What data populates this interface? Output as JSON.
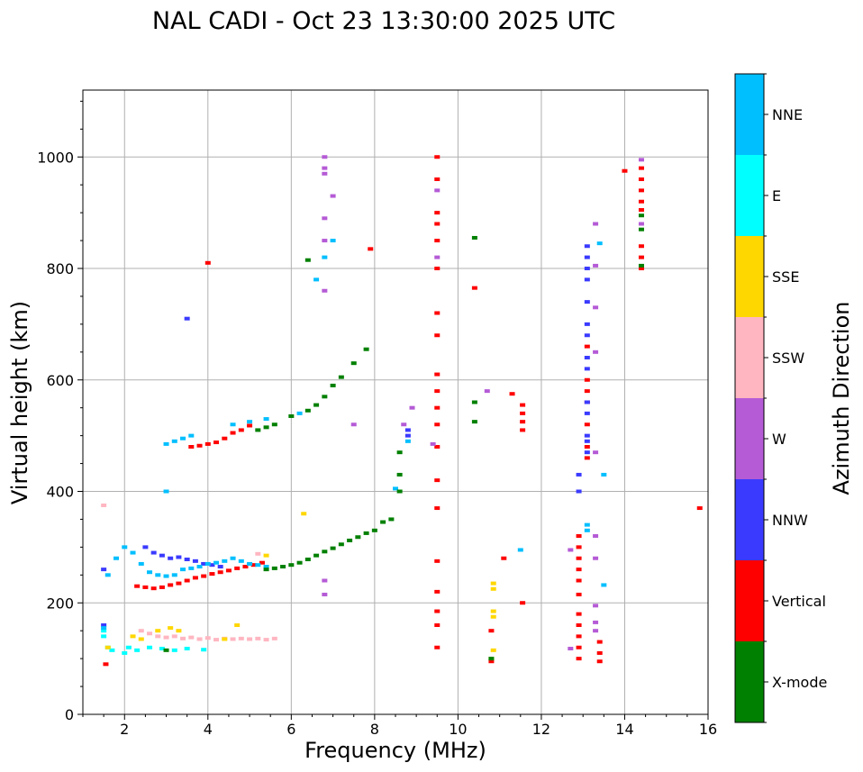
{
  "chart_data": {
    "type": "scatter",
    "title": "NAL CADI - Oct 23 13:30:00 2025 UTC",
    "xlabel": "Frequency (MHz)",
    "ylabel": "Virtual height (km)",
    "xlim": [
      1,
      16
    ],
    "ylim": [
      0,
      1120
    ],
    "xticks": [
      2,
      4,
      6,
      8,
      10,
      12,
      14,
      16
    ],
    "yticks": [
      0,
      200,
      400,
      600,
      800,
      1000
    ],
    "grid": true,
    "colorbar": {
      "label": "Azimuth Direction",
      "placement": "right",
      "categories": [
        {
          "name": "X-mode",
          "color": "#008000"
        },
        {
          "name": "Vertical",
          "color": "#ff0000"
        },
        {
          "name": "NNW",
          "color": "#3a3aff"
        },
        {
          "name": "W",
          "color": "#b55bd6"
        },
        {
          "name": "SSW",
          "color": "#ffb6c1"
        },
        {
          "name": "SSE",
          "color": "#ffd700"
        },
        {
          "name": "E",
          "color": "#00ffff"
        },
        {
          "name": "NNE",
          "color": "#00bfff"
        }
      ]
    },
    "series": [
      {
        "name": "E",
        "points": [
          [
            1.5,
            150
          ],
          [
            1.6,
            120
          ],
          [
            1.7,
            115
          ],
          [
            1.5,
            140
          ],
          [
            2.0,
            110
          ],
          [
            2.1,
            120
          ],
          [
            2.3,
            115
          ],
          [
            2.6,
            120
          ],
          [
            2.9,
            118
          ],
          [
            3.2,
            115
          ],
          [
            3.5,
            118
          ],
          [
            3.9,
            116
          ]
        ]
      },
      {
        "name": "SSW",
        "points": [
          [
            2.4,
            150
          ],
          [
            2.6,
            145
          ],
          [
            2.8,
            140
          ],
          [
            3.0,
            138
          ],
          [
            3.2,
            140
          ],
          [
            3.4,
            136
          ],
          [
            3.6,
            138
          ],
          [
            3.8,
            135
          ],
          [
            4.0,
            137
          ],
          [
            4.2,
            134
          ],
          [
            4.4,
            136
          ],
          [
            4.6,
            135
          ],
          [
            4.8,
            136
          ],
          [
            5.0,
            135
          ],
          [
            5.2,
            136
          ],
          [
            5.4,
            134
          ],
          [
            5.6,
            136
          ],
          [
            1.5,
            375
          ],
          [
            5.2,
            288
          ]
        ]
      },
      {
        "name": "SSE",
        "points": [
          [
            1.6,
            120
          ],
          [
            2.2,
            140
          ],
          [
            2.4,
            135
          ],
          [
            2.8,
            150
          ],
          [
            3.1,
            155
          ],
          [
            3.3,
            150
          ],
          [
            4.4,
            135
          ],
          [
            4.7,
            160
          ],
          [
            5.4,
            285
          ],
          [
            6.3,
            360
          ],
          [
            10.8,
            100
          ],
          [
            10.85,
            115
          ],
          [
            10.85,
            175
          ],
          [
            10.85,
            185
          ],
          [
            10.85,
            225
          ],
          [
            10.85,
            235
          ]
        ]
      },
      {
        "name": "Vertical",
        "points": [
          [
            1.55,
            90
          ],
          [
            2.3,
            230
          ],
          [
            2.5,
            228
          ],
          [
            2.7,
            226
          ],
          [
            2.9,
            228
          ],
          [
            3.1,
            232
          ],
          [
            3.3,
            235
          ],
          [
            3.5,
            240
          ],
          [
            3.7,
            245
          ],
          [
            3.9,
            248
          ],
          [
            4.1,
            252
          ],
          [
            4.3,
            255
          ],
          [
            4.5,
            258
          ],
          [
            4.7,
            262
          ],
          [
            4.9,
            265
          ],
          [
            5.1,
            268
          ],
          [
            5.3,
            272
          ],
          [
            3.6,
            480
          ],
          [
            3.8,
            482
          ],
          [
            4.0,
            485
          ],
          [
            4.2,
            488
          ],
          [
            4.4,
            495
          ],
          [
            4.6,
            505
          ],
          [
            4.8,
            510
          ],
          [
            5.0,
            518
          ],
          [
            9.5,
            1000
          ],
          [
            9.5,
            960
          ],
          [
            9.5,
            900
          ],
          [
            9.5,
            880
          ],
          [
            9.5,
            850
          ],
          [
            9.5,
            800
          ],
          [
            9.5,
            720
          ],
          [
            9.5,
            680
          ],
          [
            9.5,
            610
          ],
          [
            9.5,
            580
          ],
          [
            9.5,
            550
          ],
          [
            9.5,
            520
          ],
          [
            9.5,
            480
          ],
          [
            9.5,
            420
          ],
          [
            9.5,
            370
          ],
          [
            9.5,
            275
          ],
          [
            9.5,
            220
          ],
          [
            9.5,
            185
          ],
          [
            9.5,
            160
          ],
          [
            9.5,
            120
          ],
          [
            10.4,
            765
          ],
          [
            10.8,
            95
          ],
          [
            10.8,
            150
          ],
          [
            11.1,
            280
          ],
          [
            11.3,
            575
          ],
          [
            11.55,
            510
          ],
          [
            11.55,
            525
          ],
          [
            11.55,
            540
          ],
          [
            11.55,
            555
          ],
          [
            11.55,
            200
          ],
          [
            12.9,
            100
          ],
          [
            12.9,
            120
          ],
          [
            12.9,
            140
          ],
          [
            12.9,
            160
          ],
          [
            12.9,
            180
          ],
          [
            12.9,
            215
          ],
          [
            12.9,
            240
          ],
          [
            12.9,
            260
          ],
          [
            12.9,
            280
          ],
          [
            12.9,
            300
          ],
          [
            12.9,
            320
          ],
          [
            13.1,
            460
          ],
          [
            13.1,
            480
          ],
          [
            13.1,
            520
          ],
          [
            13.1,
            560
          ],
          [
            13.1,
            580
          ],
          [
            13.1,
            600
          ],
          [
            13.1,
            660
          ],
          [
            13.4,
            95
          ],
          [
            13.4,
            110
          ],
          [
            13.4,
            130
          ],
          [
            14.4,
            800
          ],
          [
            14.4,
            820
          ],
          [
            14.4,
            840
          ],
          [
            14.4,
            905
          ],
          [
            14.4,
            920
          ],
          [
            14.4,
            940
          ],
          [
            14.4,
            960
          ],
          [
            14.4,
            980
          ],
          [
            14.0,
            975
          ],
          [
            15.8,
            370
          ],
          [
            4.0,
            810
          ],
          [
            7.9,
            835
          ]
        ]
      },
      {
        "name": "NNW",
        "points": [
          [
            1.5,
            160
          ],
          [
            1.5,
            260
          ],
          [
            2.5,
            300
          ],
          [
            2.7,
            290
          ],
          [
            2.9,
            285
          ],
          [
            3.1,
            280
          ],
          [
            3.3,
            282
          ],
          [
            3.5,
            278
          ],
          [
            3.7,
            275
          ],
          [
            3.9,
            270
          ],
          [
            4.1,
            268
          ],
          [
            4.3,
            265
          ],
          [
            8.8,
            500
          ],
          [
            8.8,
            510
          ],
          [
            13.1,
            470
          ],
          [
            13.1,
            490
          ],
          [
            13.1,
            500
          ],
          [
            13.1,
            540
          ],
          [
            13.1,
            620
          ],
          [
            13.1,
            640
          ],
          [
            13.1,
            680
          ],
          [
            13.1,
            700
          ],
          [
            13.1,
            740
          ],
          [
            13.1,
            780
          ],
          [
            13.1,
            800
          ],
          [
            13.1,
            820
          ],
          [
            13.1,
            840
          ],
          [
            12.9,
            430
          ],
          [
            12.9,
            400
          ],
          [
            13.1,
            560
          ],
          [
            3.5,
            710
          ]
        ]
      },
      {
        "name": "W",
        "points": [
          [
            6.8,
            1000
          ],
          [
            6.8,
            970
          ],
          [
            6.8,
            890
          ],
          [
            6.8,
            850
          ],
          [
            6.8,
            760
          ],
          [
            7.0,
            930
          ],
          [
            7.5,
            520
          ],
          [
            8.7,
            520
          ],
          [
            8.9,
            550
          ],
          [
            9.4,
            485
          ],
          [
            9.5,
            940
          ],
          [
            9.5,
            820
          ],
          [
            10.7,
            580
          ],
          [
            12.7,
            118
          ],
          [
            12.7,
            295
          ],
          [
            13.3,
            150
          ],
          [
            13.3,
            165
          ],
          [
            13.3,
            195
          ],
          [
            13.3,
            280
          ],
          [
            13.3,
            320
          ],
          [
            13.3,
            470
          ],
          [
            13.3,
            650
          ],
          [
            13.3,
            730
          ],
          [
            13.3,
            805
          ],
          [
            13.3,
            880
          ],
          [
            14.4,
            880
          ],
          [
            14.4,
            995
          ],
          [
            6.8,
            240
          ],
          [
            6.8,
            215
          ],
          [
            6.8,
            980
          ]
        ]
      },
      {
        "name": "NNE",
        "points": [
          [
            1.5,
            155
          ],
          [
            1.6,
            250
          ],
          [
            1.8,
            280
          ],
          [
            2.0,
            300
          ],
          [
            2.2,
            290
          ],
          [
            2.4,
            270
          ],
          [
            2.6,
            255
          ],
          [
            2.8,
            250
          ],
          [
            3.0,
            248
          ],
          [
            3.2,
            250
          ],
          [
            3.4,
            260
          ],
          [
            3.6,
            262
          ],
          [
            3.8,
            265
          ],
          [
            4.0,
            270
          ],
          [
            4.2,
            272
          ],
          [
            4.4,
            275
          ],
          [
            4.6,
            280
          ],
          [
            4.8,
            275
          ],
          [
            5.0,
            270
          ],
          [
            5.2,
            268
          ],
          [
            5.4,
            265
          ],
          [
            3.0,
            485
          ],
          [
            3.2,
            490
          ],
          [
            3.4,
            495
          ],
          [
            3.6,
            500
          ],
          [
            4.6,
            520
          ],
          [
            5.0,
            525
          ],
          [
            5.4,
            530
          ],
          [
            6.2,
            540
          ],
          [
            6.6,
            780
          ],
          [
            6.8,
            820
          ],
          [
            7.0,
            850
          ],
          [
            8.5,
            405
          ],
          [
            8.8,
            490
          ],
          [
            11.5,
            295
          ],
          [
            13.1,
            330
          ],
          [
            13.1,
            340
          ],
          [
            13.4,
            845
          ],
          [
            13.5,
            430
          ],
          [
            13.5,
            232
          ],
          [
            3.0,
            400
          ]
        ]
      },
      {
        "name": "X-mode",
        "points": [
          [
            5.4,
            260
          ],
          [
            5.6,
            262
          ],
          [
            5.8,
            265
          ],
          [
            6.0,
            268
          ],
          [
            6.2,
            272
          ],
          [
            6.4,
            278
          ],
          [
            6.6,
            285
          ],
          [
            6.8,
            292
          ],
          [
            7.0,
            298
          ],
          [
            7.2,
            305
          ],
          [
            7.4,
            312
          ],
          [
            7.6,
            318
          ],
          [
            7.8,
            325
          ],
          [
            8.0,
            330
          ],
          [
            8.2,
            345
          ],
          [
            8.4,
            350
          ],
          [
            5.2,
            510
          ],
          [
            5.4,
            515
          ],
          [
            5.6,
            520
          ],
          [
            6.0,
            535
          ],
          [
            6.4,
            545
          ],
          [
            6.6,
            555
          ],
          [
            6.8,
            570
          ],
          [
            7.0,
            590
          ],
          [
            7.2,
            605
          ],
          [
            7.5,
            630
          ],
          [
            7.8,
            655
          ],
          [
            8.6,
            400
          ],
          [
            8.6,
            430
          ],
          [
            8.6,
            470
          ],
          [
            10.4,
            855
          ],
          [
            10.4,
            560
          ],
          [
            10.4,
            525
          ],
          [
            10.8,
            100
          ],
          [
            14.4,
            895
          ],
          [
            14.4,
            805
          ],
          [
            14.4,
            870
          ],
          [
            6.4,
            815
          ],
          [
            3.0,
            115
          ]
        ]
      }
    ]
  }
}
